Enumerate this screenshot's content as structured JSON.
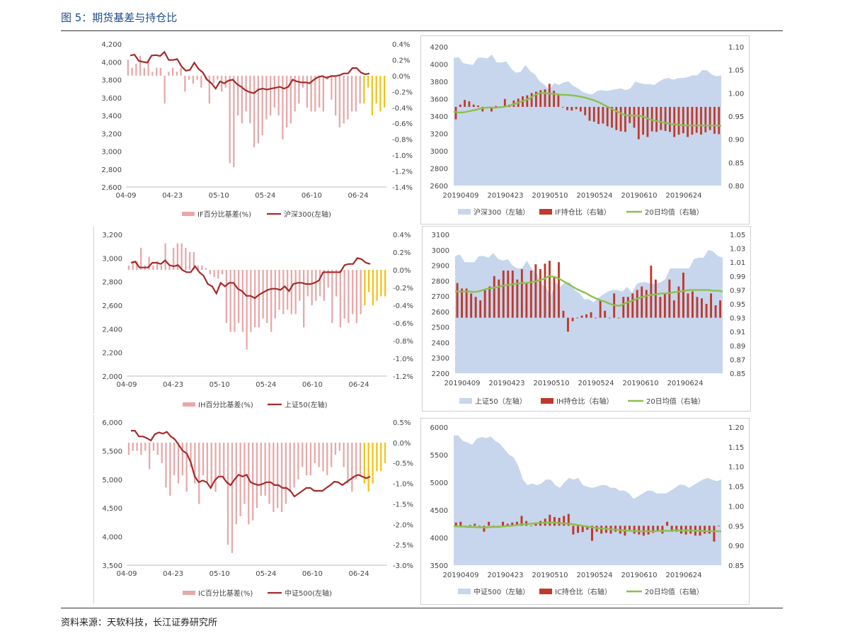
{
  "figure_title": "图 5：期货基差与持仓比",
  "source": "资料来源：天软科技，长江证券研究所",
  "chart_data": [
    {
      "id": "if_basis",
      "type": "bar",
      "x_ticks": [
        "04-09",
        "04-23",
        "05-10",
        "05-24",
        "06-10",
        "06-24"
      ],
      "y_left_ticks": [
        "2,600",
        "2,800",
        "3,000",
        "3,200",
        "3,400",
        "3,600",
        "3,800",
        "4,000",
        "4,200"
      ],
      "y_right_ticks": [
        "-1.4%",
        "-1.2%",
        "-1.0%",
        "-0.8%",
        "-0.6%",
        "-0.4%",
        "-0.2%",
        "0.0%",
        "0.2%",
        "0.4%"
      ],
      "ylim_left": [
        2600,
        4200
      ],
      "ylim_right": [
        -1.4,
        0.4
      ],
      "legend": {
        "bar": "IF百分比基差(%)",
        "line": "沪深300(左轴)"
      },
      "series_line": [
        4070,
        4080,
        4010,
        4000,
        3990,
        4070,
        4075,
        4065,
        4110,
        4020,
        4020,
        4030,
        3950,
        3900,
        3910,
        3990,
        3920,
        3880,
        3800,
        3760,
        3700,
        3780,
        3760,
        3790,
        3800,
        3750,
        3720,
        3680,
        3660,
        3650,
        3690,
        3700,
        3690,
        3700,
        3710,
        3720,
        3700,
        3720,
        3800,
        3780,
        3770,
        3770,
        3760,
        3800,
        3830,
        3840,
        3820,
        3840,
        3840,
        3850,
        3870,
        3870,
        3930,
        3930,
        3880,
        3860,
        3870
      ],
      "series_bar": [
        0.2,
        0.1,
        0.15,
        0.25,
        0.1,
        0.2,
        0.05,
        0.1,
        0.1,
        -0.35,
        0.05,
        0.1,
        0.05,
        0.1,
        -0.2,
        -0.05,
        -0.1,
        -0.05,
        -0.15,
        -0.05,
        -0.35,
        -0.1,
        -0.05,
        -0.2,
        -0.15,
        -1.1,
        -1.15,
        -0.5,
        -0.6,
        -0.45,
        -0.6,
        -0.9,
        -0.85,
        -0.75,
        -0.55,
        -0.5,
        -0.4,
        -0.5,
        -0.8,
        -0.65,
        -0.6,
        -0.45,
        -0.35,
        -0.15,
        -0.4,
        -0.45,
        -0.45,
        -0.4,
        -0.45,
        -0.05,
        -0.3,
        -0.5,
        -0.65,
        -0.6,
        -0.55,
        -0.45,
        -0.45,
        -0.35,
        -0.35,
        -0.15,
        -0.5,
        -0.35,
        -0.45,
        -0.4
      ],
      "bar_highlight_last": 6
    },
    {
      "id": "if_oi",
      "type": "area",
      "x_ticks": [
        "20190409",
        "20190423",
        "20190510",
        "20190524",
        "20190610",
        "20190624"
      ],
      "y_left_ticks": [
        "2600",
        "2800",
        "3000",
        "3200",
        "3400",
        "3600",
        "3800",
        "4000",
        "4200"
      ],
      "y_right_ticks": [
        "0.80",
        "0.85",
        "0.90",
        "0.95",
        "1.00",
        "1.05",
        "1.10"
      ],
      "ylim_left": [
        2600,
        4200
      ],
      "ylim_right": [
        0.8,
        1.1
      ],
      "legend": {
        "area": "沪深300（左轴）",
        "bar": "IF持仓比（右轴）",
        "line": "20日均值（右轴）"
      },
      "series_area": [
        4070,
        4080,
        4010,
        4000,
        3990,
        4070,
        4075,
        4065,
        4110,
        4020,
        4020,
        4030,
        3950,
        3900,
        3910,
        3990,
        3920,
        3880,
        3800,
        3760,
        3700,
        3780,
        3760,
        3790,
        3800,
        3750,
        3720,
        3680,
        3660,
        3650,
        3690,
        3700,
        3690,
        3700,
        3710,
        3720,
        3700,
        3720,
        3800,
        3780,
        3770,
        3770,
        3760,
        3800,
        3830,
        3840,
        3820,
        3840,
        3840,
        3850,
        3870,
        3870,
        3930,
        3930,
        3880,
        3860,
        3870
      ],
      "series_bar": [
        0.943,
        0.975,
        0.985,
        0.982,
        0.975,
        0.973,
        0.96,
        0.968,
        0.96,
        0.972,
        0.971,
        0.987,
        0.975,
        0.984,
        0.988,
        0.993,
        0.995,
        1.0,
        1.003,
        1.006,
        1.008,
        1.02,
        1.005,
        0.995,
        0.97,
        0.963,
        0.962,
        0.965,
        0.96,
        0.952,
        0.94,
        0.938,
        0.933,
        0.934,
        0.928,
        0.925,
        0.92,
        0.917,
        0.916,
        0.935,
        0.925,
        0.9,
        0.91,
        0.905,
        0.917,
        0.916,
        0.92,
        0.918,
        0.916,
        0.905,
        0.91,
        0.913,
        0.905,
        0.91,
        0.914,
        0.91,
        0.915,
        0.92,
        0.912,
        0.911
      ],
      "series_line": [
        0.96,
        0.958,
        0.958,
        0.96,
        0.962,
        0.964,
        0.967,
        0.968,
        0.969,
        0.968,
        0.969,
        0.97,
        0.972,
        0.975,
        0.978,
        0.982,
        0.985,
        0.99,
        0.996,
        1.0,
        1.0,
        0.999,
        0.998,
        0.997,
        0.996,
        0.996,
        0.995,
        0.994,
        0.992,
        0.99,
        0.987,
        0.984,
        0.98,
        0.975,
        0.97,
        0.965,
        0.96,
        0.955,
        0.952,
        0.951,
        0.951,
        0.951,
        0.948,
        0.944,
        0.941,
        0.939,
        0.937,
        0.935,
        0.933,
        0.932,
        0.931,
        0.93,
        0.93,
        0.93,
        0.93,
        0.93,
        0.93,
        0.93,
        0.93,
        0.929
      ]
    },
    {
      "id": "ih_basis",
      "type": "bar",
      "x_ticks": [
        "04-09",
        "04-23",
        "05-10",
        "05-24",
        "06-10",
        "06-24"
      ],
      "y_left_ticks": [
        "2,000",
        "2,200",
        "2,400",
        "2,600",
        "2,800",
        "3,000",
        "3,200"
      ],
      "y_right_ticks": [
        "-1.2%",
        "-1.0%",
        "-0.8%",
        "-0.6%",
        "-0.4%",
        "-0.2%",
        "0.0%",
        "0.2%",
        "0.4%"
      ],
      "ylim_left": [
        2000,
        3200
      ],
      "ylim_right": [
        -1.2,
        0.4
      ],
      "legend": {
        "bar": "IH百分比基差(%)",
        "line": "上证50(左轴)"
      },
      "series_line": [
        2960,
        2970,
        2920,
        2920,
        2920,
        2960,
        2960,
        2950,
        2980,
        2940,
        2930,
        2940,
        2900,
        2880,
        2880,
        2930,
        2880,
        2850,
        2780,
        2760,
        2700,
        2790,
        2760,
        2790,
        2790,
        2740,
        2720,
        2680,
        2680,
        2660,
        2690,
        2710,
        2730,
        2740,
        2740,
        2730,
        2760,
        2720,
        2780,
        2790,
        2790,
        2780,
        2780,
        2790,
        2810,
        2880,
        2880,
        2880,
        2880,
        2880,
        2940,
        2950,
        2950,
        3000,
        2990,
        2960,
        2950
      ],
      "series_bar": [
        0.05,
        0.1,
        0.1,
        0.25,
        0.05,
        0.15,
        0.05,
        0.1,
        0.05,
        0.3,
        0.05,
        0.25,
        0.3,
        0.3,
        0.25,
        0.2,
        0.2,
        0.05,
        0.05,
        0.02,
        -0.05,
        -0.08,
        -0.1,
        -0.05,
        -0.6,
        -0.7,
        -0.7,
        -0.6,
        -0.7,
        -0.9,
        -0.7,
        -0.65,
        -0.65,
        -0.55,
        -0.6,
        -0.7,
        -0.55,
        -0.45,
        -0.5,
        -0.45,
        -0.5,
        -0.5,
        -0.35,
        -0.65,
        -0.3,
        -0.4,
        -0.35,
        -0.3,
        -0.35,
        -0.2,
        -0.6,
        -0.3,
        -0.65,
        -0.55,
        -0.6,
        -0.5,
        -0.6,
        -0.5,
        -0.4,
        -0.25,
        -0.4,
        -0.35,
        -0.3,
        -0.3
      ],
      "bar_highlight_last": 6
    },
    {
      "id": "ih_oi",
      "type": "area",
      "x_ticks": [
        "20190409",
        "20190423",
        "20190510",
        "20190524",
        "20190610",
        "20190624"
      ],
      "y_left_ticks": [
        "2200",
        "2300",
        "2400",
        "2500",
        "2600",
        "2700",
        "2800",
        "2900",
        "3000",
        "3100"
      ],
      "y_right_ticks": [
        "0.85",
        "0.87",
        "0.89",
        "0.91",
        "0.93",
        "0.95",
        "0.97",
        "0.99",
        "1.01",
        "1.03",
        "1.05"
      ],
      "ylim_left": [
        2200,
        3100
      ],
      "ylim_right": [
        0.85,
        1.05
      ],
      "legend": {
        "area": "上证50（左轴）",
        "bar": "IH持仓比（右轴）",
        "line": "20日均值（右轴）"
      },
      "series_area": [
        2960,
        2970,
        2920,
        2920,
        2920,
        2960,
        2960,
        2950,
        2980,
        2940,
        2930,
        2940,
        2900,
        2880,
        2880,
        2930,
        2880,
        2850,
        2780,
        2760,
        2700,
        2790,
        2760,
        2790,
        2790,
        2740,
        2720,
        2680,
        2680,
        2660,
        2690,
        2710,
        2730,
        2740,
        2740,
        2730,
        2760,
        2720,
        2780,
        2790,
        2790,
        2780,
        2780,
        2790,
        2810,
        2880,
        2880,
        2880,
        2880,
        2880,
        2940,
        2950,
        2950,
        3000,
        2990,
        2960,
        2950
      ],
      "series_bar": [
        0.98,
        0.972,
        0.972,
        0.965,
        0.96,
        0.955,
        0.97,
        0.975,
        0.99,
        0.985,
        0.998,
        0.998,
        0.998,
        0.985,
        1.0,
        0.98,
        0.998,
        1.007,
        1.0,
        1.008,
        1.012,
        0.99,
        1.01,
        0.94,
        0.91,
        0.925,
        0.93,
        0.933,
        0.935,
        0.938,
        0.93,
        0.955,
        0.94,
        0.93,
        0.965,
        0.93,
        0.96,
        0.96,
        0.965,
        0.97,
        0.975,
        0.97,
        1.005,
        0.985,
        0.96,
        0.965,
        0.985,
        0.955,
        0.975,
        0.995,
        0.965,
        0.968,
        0.96,
        0.958,
        0.95,
        0.965,
        0.948,
        0.955
      ],
      "series_line": [
        0.968,
        0.968,
        0.968,
        0.968,
        0.967,
        0.968,
        0.97,
        0.972,
        0.973,
        0.974,
        0.976,
        0.977,
        0.978,
        0.979,
        0.98,
        0.98,
        0.981,
        0.982,
        0.984,
        0.986,
        0.99,
        0.989,
        0.987,
        0.983,
        0.979,
        0.975,
        0.971,
        0.968,
        0.965,
        0.961,
        0.958,
        0.955,
        0.953,
        0.95,
        0.948,
        0.947,
        0.95,
        0.953,
        0.955,
        0.958,
        0.96,
        0.962,
        0.963,
        0.964,
        0.965,
        0.965,
        0.966,
        0.967,
        0.968,
        0.969,
        0.97,
        0.97,
        0.97,
        0.97,
        0.97,
        0.969,
        0.969,
        0.968
      ]
    },
    {
      "id": "ic_basis",
      "type": "bar",
      "x_ticks": [
        "04-09",
        "04-23",
        "05-10",
        "05-24",
        "06-10",
        "06-24"
      ],
      "y_left_ticks": [
        "3,500",
        "4,000",
        "4,500",
        "5,000",
        "5,500",
        "6,000"
      ],
      "y_right_ticks": [
        "-3.0%",
        "-2.5%",
        "-2.0%",
        "-1.5%",
        "-1.0%",
        "-0.5%",
        "0.0%",
        "0.5%"
      ],
      "ylim_left": [
        3500,
        6000
      ],
      "ylim_right": [
        -3.0,
        0.5
      ],
      "legend": {
        "bar": "IC百分比基差(%)",
        "line": "中证500(左轴)"
      },
      "series_line": [
        5850,
        5850,
        5750,
        5750,
        5720,
        5680,
        5790,
        5820,
        5800,
        5830,
        5750,
        5700,
        5600,
        5500,
        5450,
        5300,
        5050,
        4950,
        4980,
        4950,
        4850,
        4980,
        5050,
        5050,
        4950,
        4900,
        5000,
        5080,
        5050,
        5080,
        4950,
        4920,
        4900,
        4920,
        4950,
        4950,
        4900,
        4900,
        4850,
        4850,
        4800,
        4700,
        4750,
        4800,
        4850,
        4850,
        4800,
        4800,
        4800,
        4850,
        4900,
        4960,
        4950,
        4900,
        4950,
        5000,
        5050,
        5080,
        5050,
        5020,
        5050
      ],
      "series_bar": [
        -0.3,
        -0.2,
        -0.2,
        -0.3,
        -0.2,
        -0.65,
        -0.2,
        -0.3,
        -0.5,
        -1.1,
        -1.3,
        -0.8,
        -1.0,
        -0.8,
        -1.2,
        -0.6,
        -1.0,
        -1.5,
        -0.8,
        -1.0,
        -1.1,
        -1.2,
        -0.8,
        -0.9,
        -2.5,
        -2.7,
        -2.0,
        -1.8,
        -1.5,
        -2.0,
        -1.9,
        -1.6,
        -1.3,
        -1.3,
        -1.5,
        -1.7,
        -1.6,
        -1.7,
        -1.5,
        -1.2,
        -1.1,
        -0.9,
        -0.6,
        -0.8,
        -0.8,
        -0.5,
        -0.6,
        -0.7,
        -0.8,
        -0.6,
        -0.3,
        -0.2,
        -0.6,
        -1.0,
        -1.2,
        -0.9,
        -0.8,
        -1.0,
        -1.2,
        -1.0,
        -0.7,
        -0.7,
        -0.5
      ],
      "bar_highlight_last": 6
    },
    {
      "id": "ic_oi",
      "type": "area",
      "x_ticks": [
        "20190409",
        "20190423",
        "20190510",
        "20190524",
        "20190610",
        "20190624"
      ],
      "y_left_ticks": [
        "3500",
        "4000",
        "4500",
        "5000",
        "5500",
        "6000"
      ],
      "y_right_ticks": [
        "0.85",
        "0.90",
        "0.95",
        "1.00",
        "1.05",
        "1.10",
        "1.15",
        "1.20"
      ],
      "ylim_left": [
        3500,
        6000
      ],
      "ylim_right": [
        0.85,
        1.2
      ],
      "legend": {
        "area": "中证500（左轴）",
        "bar": "IC持仓比（右轴）",
        "line": "20日均值（右轴）"
      },
      "series_area": [
        5850,
        5850,
        5750,
        5720,
        5680,
        5790,
        5820,
        5800,
        5830,
        5750,
        5700,
        5600,
        5500,
        5450,
        5300,
        5050,
        4950,
        4980,
        4950,
        4980,
        5050,
        5050,
        4950,
        4900,
        5000,
        5080,
        5050,
        5080,
        4950,
        4920,
        4900,
        4920,
        4950,
        4950,
        4900,
        4900,
        4850,
        4850,
        4800,
        4700,
        4750,
        4800,
        4850,
        4850,
        4800,
        4800,
        4800,
        4850,
        4900,
        4960,
        4950,
        4900,
        4950,
        5000,
        5050,
        5080,
        5050,
        5020,
        5050
      ],
      "series_bar": [
        0.958,
        0.96,
        0.948,
        0.952,
        0.955,
        0.95,
        0.935,
        0.96,
        0.95,
        0.95,
        0.96,
        0.955,
        0.958,
        0.96,
        0.975,
        0.962,
        0.95,
        0.958,
        0.962,
        0.968,
        0.978,
        0.972,
        0.97,
        0.975,
        0.98,
        0.928,
        0.932,
        0.934,
        0.94,
        0.912,
        0.935,
        0.93,
        0.932,
        0.93,
        0.935,
        0.93,
        0.925,
        0.94,
        0.93,
        0.928,
        0.925,
        0.928,
        0.932,
        0.935,
        0.93,
        0.96,
        0.935,
        0.935,
        0.93,
        0.928,
        0.93,
        0.925,
        0.925,
        0.93,
        0.93,
        0.91,
        0.95
      ],
      "series_line": [
        0.949,
        0.948,
        0.948,
        0.947,
        0.947,
        0.946,
        0.946,
        0.946,
        0.947,
        0.947,
        0.948,
        0.949,
        0.95,
        0.951,
        0.953,
        0.954,
        0.955,
        0.956,
        0.957,
        0.958,
        0.958,
        0.958,
        0.957,
        0.956,
        0.955,
        0.954,
        0.952,
        0.95,
        0.948,
        0.946,
        0.944,
        0.943,
        0.942,
        0.941,
        0.94,
        0.939,
        0.938,
        0.937,
        0.937,
        0.936,
        0.936,
        0.936,
        0.936,
        0.937,
        0.937,
        0.937,
        0.938,
        0.938,
        0.938,
        0.938,
        0.938,
        0.937,
        0.937,
        0.936,
        0.936,
        0.936,
        0.936
      ]
    }
  ]
}
